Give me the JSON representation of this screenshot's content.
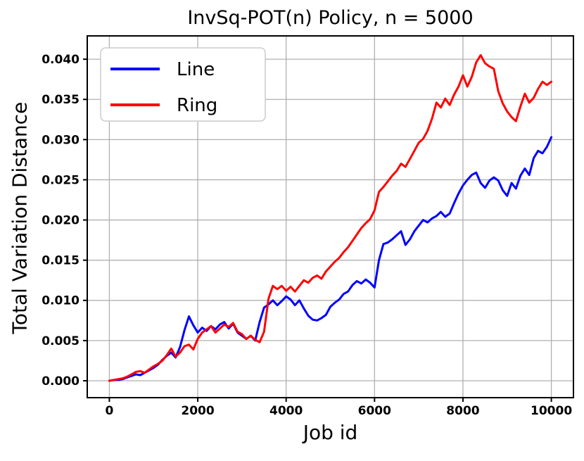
{
  "chart_data": {
    "type": "line",
    "title": "InvSq-POT(n) Policy, n = 5000",
    "xlabel": "Job id",
    "ylabel": "Total Variation Distance",
    "xlim": [
      -500,
      10500
    ],
    "ylim": [
      -0.0021,
      0.0429
    ],
    "grid": true,
    "grid_color": "#b0b0b0",
    "axis_color": "#000000",
    "legend_position": "upper left",
    "xtick_values": [
      0,
      2000,
      4000,
      6000,
      8000,
      10000
    ],
    "xtick_labels": [
      "0",
      "2000",
      "4000",
      "6000",
      "8000",
      "10000"
    ],
    "ytick_values": [
      0.0,
      0.005,
      0.01,
      0.015,
      0.02,
      0.025,
      0.03,
      0.035,
      0.04
    ],
    "ytick_labels": [
      "0.000",
      "0.005",
      "0.010",
      "0.015",
      "0.020",
      "0.025",
      "0.030",
      "0.035",
      "0.040"
    ],
    "x": [
      0,
      100,
      200,
      300,
      400,
      500,
      600,
      700,
      800,
      900,
      1000,
      1100,
      1200,
      1300,
      1400,
      1500,
      1600,
      1700,
      1800,
      1900,
      2000,
      2100,
      2200,
      2300,
      2400,
      2500,
      2600,
      2700,
      2800,
      2900,
      3000,
      3100,
      3200,
      3300,
      3400,
      3500,
      3600,
      3700,
      3800,
      3900,
      4000,
      4100,
      4200,
      4300,
      4400,
      4500,
      4600,
      4700,
      4800,
      4900,
      5000,
      5100,
      5200,
      5300,
      5400,
      5500,
      5600,
      5700,
      5800,
      5900,
      6000,
      6100,
      6200,
      6300,
      6400,
      6500,
      6600,
      6700,
      6800,
      6900,
      7000,
      7100,
      7200,
      7300,
      7400,
      7500,
      7600,
      7700,
      7800,
      7900,
      8000,
      8100,
      8200,
      8300,
      8400,
      8500,
      8600,
      8700,
      8800,
      8900,
      9000,
      9100,
      9200,
      9300,
      9400,
      9500,
      9600,
      9700,
      9800,
      9900,
      10000
    ],
    "series": [
      {
        "name": "Line",
        "color": "#0000ff",
        "values": [
          0.0,
          0.0001,
          0.0001,
          0.0002,
          0.0004,
          0.0006,
          0.0008,
          0.0007,
          0.001,
          0.0013,
          0.0016,
          0.002,
          0.0026,
          0.0031,
          0.0035,
          0.0029,
          0.0042,
          0.0063,
          0.008,
          0.0069,
          0.006,
          0.0066,
          0.0062,
          0.0068,
          0.0064,
          0.007,
          0.0073,
          0.0065,
          0.0071,
          0.006,
          0.0056,
          0.0052,
          0.0056,
          0.005,
          0.0073,
          0.0091,
          0.0095,
          0.01,
          0.0094,
          0.0099,
          0.0105,
          0.0101,
          0.0094,
          0.01,
          0.009,
          0.0081,
          0.0076,
          0.0075,
          0.0078,
          0.0082,
          0.0092,
          0.0097,
          0.0101,
          0.0108,
          0.0111,
          0.0119,
          0.0124,
          0.0121,
          0.0126,
          0.0122,
          0.0116,
          0.015,
          0.017,
          0.0172,
          0.0176,
          0.0181,
          0.0186,
          0.0169,
          0.0176,
          0.0186,
          0.0193,
          0.02,
          0.0197,
          0.0202,
          0.0205,
          0.021,
          0.0204,
          0.0208,
          0.0221,
          0.0233,
          0.0243,
          0.025,
          0.0256,
          0.0259,
          0.0246,
          0.024,
          0.0249,
          0.0253,
          0.0249,
          0.0237,
          0.023,
          0.0246,
          0.0239,
          0.0255,
          0.0264,
          0.0256,
          0.0277,
          0.0286,
          0.0283,
          0.0291,
          0.0303
        ]
      },
      {
        "name": "Ring",
        "color": "#ff0000",
        "values": [
          0.0,
          0.0001,
          0.0002,
          0.0003,
          0.0005,
          0.0008,
          0.0011,
          0.0012,
          0.001,
          0.0014,
          0.0018,
          0.0021,
          0.0025,
          0.0032,
          0.004,
          0.003,
          0.0035,
          0.0043,
          0.0045,
          0.0039,
          0.0052,
          0.006,
          0.0064,
          0.0068,
          0.006,
          0.0065,
          0.007,
          0.0067,
          0.0072,
          0.0061,
          0.0058,
          0.0052,
          0.0056,
          0.0051,
          0.0048,
          0.0061,
          0.0102,
          0.0118,
          0.0114,
          0.0118,
          0.0112,
          0.0117,
          0.0111,
          0.0118,
          0.0125,
          0.0122,
          0.0128,
          0.0131,
          0.0127,
          0.0136,
          0.0142,
          0.0148,
          0.0153,
          0.016,
          0.0166,
          0.0174,
          0.0182,
          0.019,
          0.0196,
          0.0201,
          0.0212,
          0.0235,
          0.0241,
          0.0248,
          0.0255,
          0.0261,
          0.027,
          0.0266,
          0.0276,
          0.0286,
          0.0296,
          0.0301,
          0.0311,
          0.0326,
          0.0346,
          0.034,
          0.0351,
          0.0343,
          0.0356,
          0.0366,
          0.038,
          0.0366,
          0.0378,
          0.0396,
          0.0405,
          0.0395,
          0.0391,
          0.0388,
          0.036,
          0.0345,
          0.0335,
          0.0328,
          0.0323,
          0.0341,
          0.0357,
          0.0346,
          0.0352,
          0.0363,
          0.0372,
          0.0368,
          0.0372
        ]
      }
    ]
  }
}
